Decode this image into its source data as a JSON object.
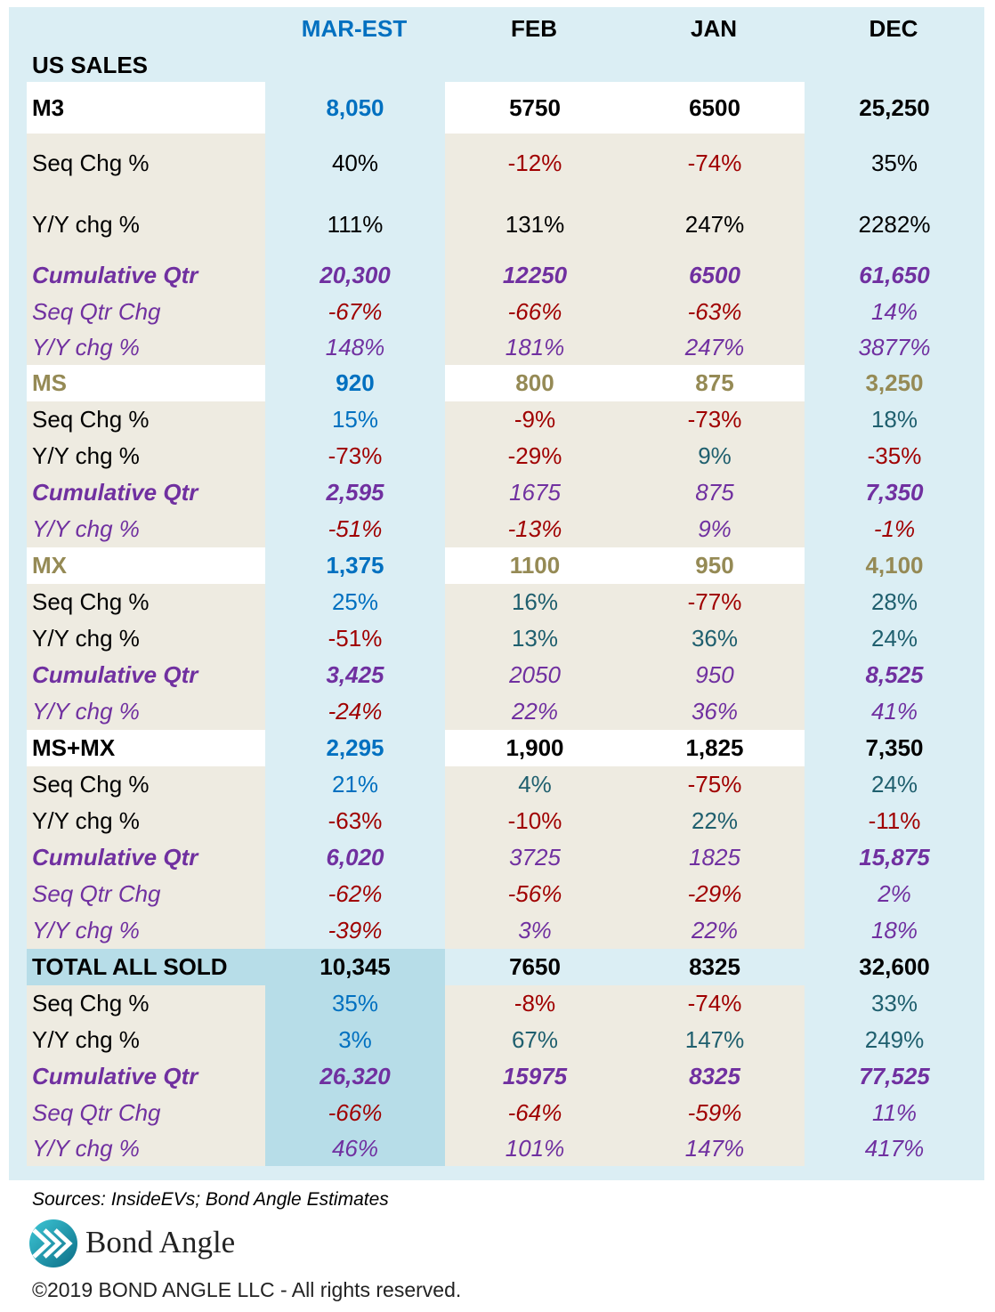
{
  "columns": [
    "MAR-EST",
    "FEB",
    "JAN",
    "DEC"
  ],
  "title": "US SALES",
  "sources": "Sources: InsideEVs; Bond Angle Estimates",
  "logo_text": "Bond Angle",
  "copyright": "©2019 BOND ANGLE LLC - All rights reserved.",
  "colors": {
    "panel": "#dbeef4",
    "white": "#ffffff",
    "beige": "#eeebe1",
    "highlight": "#b7dde8",
    "blue": "#0070c0",
    "black": "#000000",
    "red": "#a00000",
    "purple": "#7030a0",
    "olive": "#958a55",
    "teal": "#1f5f6e",
    "header_est": "#0070c0"
  },
  "chart_data": {
    "type": "table",
    "title": "US SALES",
    "columns": [
      "MAR-EST",
      "FEB",
      "JAN",
      "DEC"
    ],
    "rows": [
      {
        "label": "M3",
        "style": "head",
        "values": [
          "8,050",
          "5750",
          "6500",
          "25,250"
        ],
        "colors": [
          "blue",
          "black",
          "black",
          "black"
        ],
        "label_color": "black"
      },
      {
        "label": "Seq Chg %",
        "style": "plain",
        "values": [
          "40%",
          "-12%",
          "-74%",
          "35%"
        ],
        "colors": [
          "black",
          "red",
          "red",
          "black"
        ],
        "label_color": "black"
      },
      {
        "label": "Y/Y chg %",
        "style": "plain",
        "values": [
          "111%",
          "131%",
          "247%",
          "2282%"
        ],
        "colors": [
          "black",
          "black",
          "black",
          "black"
        ],
        "label_color": "black"
      },
      {
        "label": "Cumulative Qtr",
        "style": "cum",
        "values": [
          "20,300",
          "12250",
          "6500",
          "61,650"
        ],
        "colors": [
          "purple",
          "purple",
          "purple",
          "purple"
        ],
        "label_color": "purple"
      },
      {
        "label": "Seq Qtr Chg",
        "style": "ital",
        "values": [
          "-67%",
          "-66%",
          "-63%",
          "14%"
        ],
        "colors": [
          "red",
          "red",
          "red",
          "purple"
        ],
        "label_color": "purple"
      },
      {
        "label": "Y/Y chg %",
        "style": "ital",
        "values": [
          "148%",
          "181%",
          "247%",
          "3877%"
        ],
        "colors": [
          "purple",
          "purple",
          "purple",
          "purple"
        ],
        "label_color": "purple"
      },
      {
        "label": "MS",
        "style": "head",
        "values": [
          "920",
          "800",
          "875",
          "3,250"
        ],
        "colors": [
          "blue",
          "olive",
          "olive",
          "olive"
        ],
        "label_color": "olive"
      },
      {
        "label": "Seq Chg %",
        "style": "plain",
        "values": [
          "15%",
          "-9%",
          "-73%",
          "18%"
        ],
        "colors": [
          "blue",
          "red",
          "red",
          "teal"
        ],
        "label_color": "black"
      },
      {
        "label": "Y/Y chg %",
        "style": "plain",
        "values": [
          "-73%",
          "-29%",
          "9%",
          "-35%"
        ],
        "colors": [
          "red",
          "red",
          "teal",
          "red"
        ],
        "label_color": "black"
      },
      {
        "label": "Cumulative Qtr",
        "style": "cum",
        "values": [
          "2,595",
          "1675",
          "875",
          "7,350"
        ],
        "colors": [
          "purple",
          "purple",
          "purple",
          "purple"
        ],
        "label_color": "purple",
        "value_bold": [
          true,
          false,
          false,
          true
        ]
      },
      {
        "label": "Y/Y chg %",
        "style": "ital",
        "values": [
          "-51%",
          "-13%",
          "9%",
          "-1%"
        ],
        "colors": [
          "red",
          "red",
          "purple",
          "red"
        ],
        "label_color": "purple"
      },
      {
        "label": "MX",
        "style": "head",
        "values": [
          "1,375",
          "1100",
          "950",
          "4,100"
        ],
        "colors": [
          "blue",
          "olive",
          "olive",
          "olive"
        ],
        "label_color": "olive"
      },
      {
        "label": "Seq Chg %",
        "style": "plain",
        "values": [
          "25%",
          "16%",
          "-77%",
          "28%"
        ],
        "colors": [
          "blue",
          "teal",
          "red",
          "teal"
        ],
        "label_color": "black"
      },
      {
        "label": "Y/Y chg %",
        "style": "plain",
        "values": [
          "-51%",
          "13%",
          "36%",
          "24%"
        ],
        "colors": [
          "red",
          "teal",
          "teal",
          "teal"
        ],
        "label_color": "black"
      },
      {
        "label": "Cumulative Qtr",
        "style": "cum",
        "values": [
          "3,425",
          "2050",
          "950",
          "8,525"
        ],
        "colors": [
          "purple",
          "purple",
          "purple",
          "purple"
        ],
        "label_color": "purple",
        "value_bold": [
          true,
          false,
          false,
          true
        ]
      },
      {
        "label": "Y/Y chg %",
        "style": "ital",
        "values": [
          "-24%",
          "22%",
          "36%",
          "41%"
        ],
        "colors": [
          "red",
          "purple",
          "purple",
          "purple"
        ],
        "label_color": "purple"
      },
      {
        "label": "MS+MX",
        "style": "head",
        "values": [
          "2,295",
          "1,900",
          "1,825",
          "7,350"
        ],
        "colors": [
          "blue",
          "black",
          "black",
          "black"
        ],
        "label_color": "black"
      },
      {
        "label": "Seq Chg %",
        "style": "plain",
        "values": [
          "21%",
          "4%",
          "-75%",
          "24%"
        ],
        "colors": [
          "blue",
          "teal",
          "red",
          "teal"
        ],
        "label_color": "black"
      },
      {
        "label": "Y/Y chg %",
        "style": "plain",
        "values": [
          "-63%",
          "-10%",
          "22%",
          "-11%"
        ],
        "colors": [
          "red",
          "red",
          "teal",
          "red"
        ],
        "label_color": "black"
      },
      {
        "label": "Cumulative Qtr",
        "style": "cum",
        "values": [
          "6,020",
          "3725",
          "1825",
          "15,875"
        ],
        "colors": [
          "purple",
          "purple",
          "purple",
          "purple"
        ],
        "label_color": "purple",
        "value_bold": [
          true,
          false,
          false,
          true
        ]
      },
      {
        "label": "Seq Qtr Chg",
        "style": "ital",
        "values": [
          "-62%",
          "-56%",
          "-29%",
          "2%"
        ],
        "colors": [
          "red",
          "red",
          "red",
          "purple"
        ],
        "label_color": "purple"
      },
      {
        "label": "Y/Y chg %",
        "style": "ital",
        "values": [
          "-39%",
          "3%",
          "22%",
          "18%"
        ],
        "colors": [
          "red",
          "purple",
          "purple",
          "purple"
        ],
        "label_color": "purple"
      },
      {
        "label": "TOTAL ALL SOLD",
        "style": "total",
        "values": [
          "10,345",
          "7650",
          "8325",
          "32,600"
        ],
        "colors": [
          "black",
          "black",
          "black",
          "black"
        ],
        "label_color": "black"
      },
      {
        "label": "Seq Chg %",
        "style": "plain",
        "values": [
          "35%",
          "-8%",
          "-74%",
          "33%"
        ],
        "colors": [
          "blue",
          "red",
          "red",
          "teal"
        ],
        "label_color": "black"
      },
      {
        "label": "Y/Y chg %",
        "style": "plain",
        "values": [
          "3%",
          "67%",
          "147%",
          "249%"
        ],
        "colors": [
          "blue",
          "teal",
          "teal",
          "teal"
        ],
        "label_color": "black"
      },
      {
        "label": "Cumulative Qtr",
        "style": "cum",
        "values": [
          "26,320",
          "15975",
          "8325",
          "77,525"
        ],
        "colors": [
          "purple",
          "purple",
          "purple",
          "purple"
        ],
        "label_color": "purple"
      },
      {
        "label": "Seq Qtr Chg",
        "style": "ital",
        "values": [
          "-66%",
          "-64%",
          "-59%",
          "11%"
        ],
        "colors": [
          "red",
          "red",
          "red",
          "purple"
        ],
        "label_color": "purple"
      },
      {
        "label": "Y/Y chg %",
        "style": "ital",
        "values": [
          "46%",
          "101%",
          "147%",
          "417%"
        ],
        "colors": [
          "purple",
          "purple",
          "purple",
          "purple"
        ],
        "label_color": "purple"
      }
    ]
  }
}
